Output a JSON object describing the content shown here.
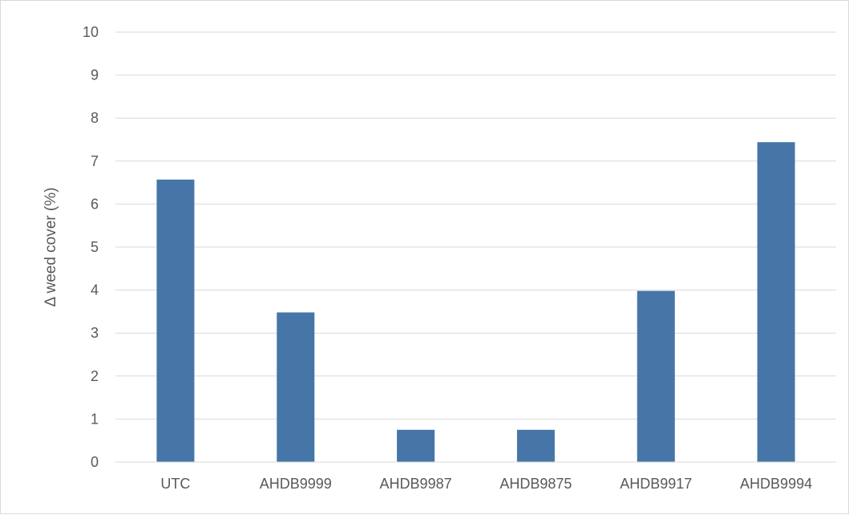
{
  "chart_data": {
    "type": "bar",
    "categories": [
      "UTC",
      "AHDB9999",
      "AHDB9987",
      "AHDB9875",
      "AHDB9917",
      "AHDB9994"
    ],
    "values": [
      6.57,
      3.48,
      0.75,
      0.75,
      3.98,
      7.44
    ],
    "title": "",
    "xlabel": "",
    "ylabel": "Δ weed cover (%)",
    "ylim": [
      0,
      10
    ],
    "yticks": [
      "0",
      "1",
      "2",
      "3",
      "4",
      "5",
      "6",
      "7",
      "8",
      "9",
      "10"
    ],
    "grid": true,
    "legend": "none",
    "bar_color": "#4676a8",
    "grid_color": "#d9d9d9"
  }
}
